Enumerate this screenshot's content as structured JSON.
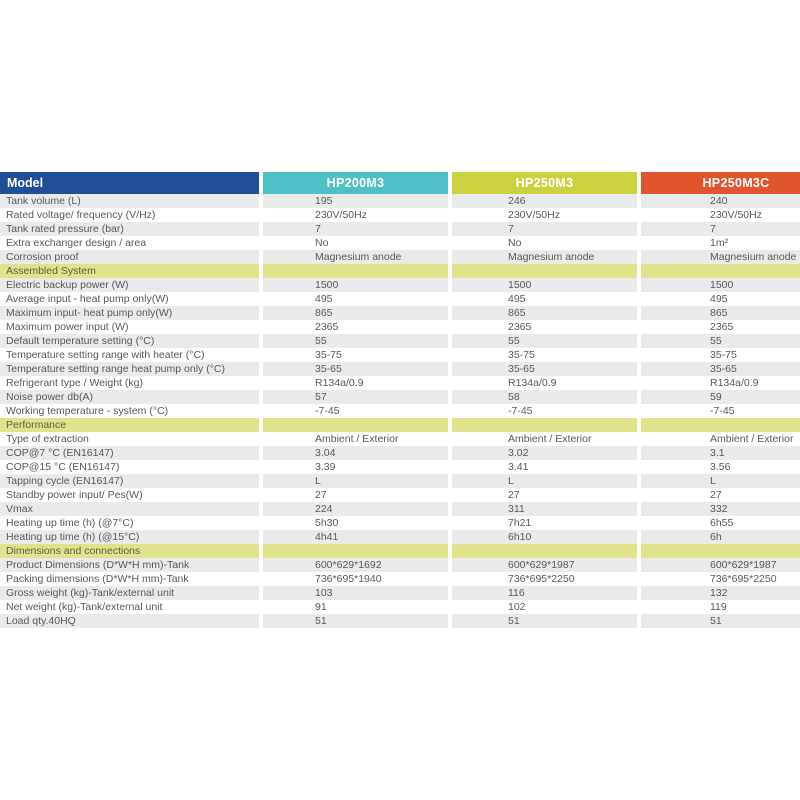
{
  "table": {
    "header": {
      "model_label": "Model",
      "model_bg": "#1e4f98",
      "columns": [
        {
          "label": "HP200M3",
          "color": "#4fc1c6"
        },
        {
          "label": "HP250M3",
          "color": "#ccd23f"
        },
        {
          "label": "HP250M3C",
          "color": "#e0542e"
        }
      ]
    },
    "colors": {
      "section_bg": "#e0e38b",
      "stripe_bg": "#e9eaea",
      "row_bg": "#ffffff",
      "text": "#58595b"
    },
    "rows": [
      {
        "type": "data",
        "label": "Tank volume (L)",
        "values": [
          "195",
          "246",
          "240"
        ]
      },
      {
        "type": "data",
        "label": "Rated voltage/ frequency (V/Hz)",
        "values": [
          "230V/50Hz",
          "230V/50Hz",
          "230V/50Hz"
        ]
      },
      {
        "type": "data",
        "label": "Tank rated pressure (bar)",
        "values": [
          "7",
          "7",
          "7"
        ]
      },
      {
        "type": "data",
        "label": "Extra exchanger design / area",
        "values": [
          "No",
          "No",
          "1m²"
        ]
      },
      {
        "type": "data",
        "label": "Corrosion proof",
        "values": [
          "Magnesium anode",
          "Magnesium anode",
          "Magnesium anode"
        ]
      },
      {
        "type": "section",
        "label": "Assembled System"
      },
      {
        "type": "data",
        "label": "Electric backup power (W)",
        "values": [
          "1500",
          "1500",
          "1500"
        ]
      },
      {
        "type": "data",
        "label": "Average input - heat pump only(W)",
        "values": [
          "495",
          "495",
          "495"
        ]
      },
      {
        "type": "data",
        "label": "Maximum input- heat pump only(W)",
        "values": [
          "865",
          "865",
          "865"
        ]
      },
      {
        "type": "data",
        "label": "Maximum power input  (W)",
        "values": [
          "2365",
          "2365",
          "2365"
        ]
      },
      {
        "type": "data",
        "label": "Default temperature setting (°C)",
        "values": [
          "55",
          "55",
          "55"
        ]
      },
      {
        "type": "data",
        "label": "Temperature setting range with heater (°C)",
        "values": [
          "35-75",
          "35-75",
          "35-75"
        ]
      },
      {
        "type": "data",
        "label": "Temperature setting range heat pump only (°C)",
        "values": [
          "35-65",
          "35-65",
          "35-65"
        ]
      },
      {
        "type": "data",
        "label": "Refrigerant type / Weight (kg)",
        "values": [
          "R134a/0.9",
          "R134a/0.9",
          "R134a/0.9"
        ]
      },
      {
        "type": "data",
        "label": "Noise power db(A)",
        "values": [
          "57",
          "58",
          "59"
        ]
      },
      {
        "type": "data",
        "label": "Working temperature - system (°C)",
        "values": [
          "-7-45",
          "-7-45",
          "-7-45"
        ]
      },
      {
        "type": "section",
        "label": "Performance"
      },
      {
        "type": "data",
        "label": "Type of extraction",
        "values": [
          "Ambient / Exterior",
          "Ambient / Exterior",
          "Ambient / Exterior"
        ]
      },
      {
        "type": "data",
        "label": "COP@7 °C (EN16147)",
        "values": [
          "3.04",
          "3.02",
          "3.1"
        ]
      },
      {
        "type": "data",
        "label": "COP@15 °C (EN16147)",
        "values": [
          "3.39",
          "3.41",
          "3.56"
        ]
      },
      {
        "type": "data",
        "label": "Tapping cycle (EN16147)",
        "values": [
          "L",
          "L",
          "L"
        ]
      },
      {
        "type": "data",
        "label": "Standby power input/ Pes(W)",
        "values": [
          "27",
          "27",
          "27"
        ]
      },
      {
        "type": "data",
        "label": "Vmax",
        "values": [
          "224",
          "311",
          "332"
        ]
      },
      {
        "type": "data",
        "label": "Heating up time  (h)   (@7°C)",
        "values": [
          "5h30",
          "7h21",
          "6h55"
        ]
      },
      {
        "type": "data",
        "label": "Heating up time  (h)   (@15°C)",
        "values": [
          "4h41",
          "6h10",
          "6h"
        ]
      },
      {
        "type": "section",
        "label": "Dimensions and connections"
      },
      {
        "type": "data",
        "label": "Product Dimensions (D*W*H mm)-Tank",
        "values": [
          "600*629*1692",
          "600*629*1987",
          "600*629*1987"
        ]
      },
      {
        "type": "data",
        "label": "Packing dimensions (D*W*H mm)-Tank",
        "values": [
          "736*695*1940",
          "736*695*2250",
          "736*695*2250"
        ]
      },
      {
        "type": "data",
        "label": "Gross weight (kg)-Tank/external unit",
        "values": [
          "103",
          "116",
          "132"
        ]
      },
      {
        "type": "data",
        "label": "Net weight (kg)-Tank/external unit",
        "values": [
          "91",
          "102",
          "119"
        ]
      },
      {
        "type": "data",
        "label": "Load qty.40HQ",
        "values": [
          "51",
          "51",
          "51"
        ]
      }
    ]
  }
}
